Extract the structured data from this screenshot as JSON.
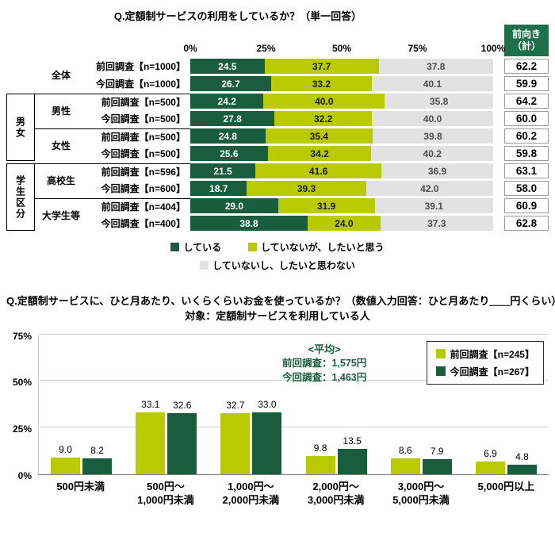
{
  "page": {
    "background": "#ffffff"
  },
  "colors": {
    "dark_green": "#1a5c3e",
    "lime_green": "#b9cb00",
    "light_gray": "#e2e2e2",
    "header_green": "#1e6f4a",
    "average_text": "#1a5c3e"
  },
  "chart_data": [
    {
      "type": "bar",
      "subtype": "horizontal-stacked",
      "title": "Q.定額制サービスの利用をしているか？（単一回答）",
      "value_column_header_line1": "前向き",
      "value_column_header_line2": "（計）",
      "axis_ticks": [
        "0%",
        "25%",
        "50%",
        "75%",
        "100%"
      ],
      "axis_range": [
        0,
        100
      ],
      "series": [
        "している",
        "していないが、したいと思う",
        "していないし、したいと思わない"
      ],
      "series_colors": [
        "#1a5c3e",
        "#b9cb00",
        "#e2e2e2"
      ],
      "series_label_colors": [
        "#ffffff",
        "#1a1a1a",
        "#4d4d4d"
      ],
      "blocks": [
        {
          "group_label": "",
          "subgroups": [
            {
              "label": "全体",
              "rows": [
                {
                  "label": "前回調査【n=1000】",
                  "values": [
                    24.5,
                    37.7,
                    37.8
                  ],
                  "positive_total": 62.2
                },
                {
                  "label": "今回調査【n=1000】",
                  "values": [
                    26.7,
                    33.2,
                    40.1
                  ],
                  "positive_total": 59.9
                }
              ]
            }
          ]
        },
        {
          "group_label": "男女",
          "subgroups": [
            {
              "label": "男性",
              "rows": [
                {
                  "label": "前回調査【n=500】",
                  "values": [
                    24.2,
                    40.0,
                    35.8
                  ],
                  "positive_total": 64.2
                },
                {
                  "label": "今回調査【n=500】",
                  "values": [
                    27.8,
                    32.2,
                    40.0
                  ],
                  "positive_total": 60.0
                }
              ]
            },
            {
              "label": "女性",
              "rows": [
                {
                  "label": "前回調査【n=500】",
                  "values": [
                    24.8,
                    35.4,
                    39.8
                  ],
                  "positive_total": 60.2
                },
                {
                  "label": "今回調査【n=500】",
                  "values": [
                    25.6,
                    34.2,
                    40.2
                  ],
                  "positive_total": 59.8
                }
              ]
            }
          ]
        },
        {
          "group_label": "学生区分",
          "subgroups": [
            {
              "label": "高校生",
              "rows": [
                {
                  "label": "前回調査【n=596】",
                  "values": [
                    21.5,
                    41.6,
                    36.9
                  ],
                  "positive_total": 63.1
                },
                {
                  "label": "今回調査【n=600】",
                  "values": [
                    18.7,
                    39.3,
                    42.0
                  ],
                  "positive_total": 58.0
                }
              ]
            },
            {
              "label": "大学生等",
              "rows": [
                {
                  "label": "前回調査【n=404】",
                  "values": [
                    29.0,
                    31.9,
                    39.1
                  ],
                  "positive_total": 60.9
                },
                {
                  "label": "今回調査【n=400】",
                  "values": [
                    38.8,
                    24.0,
                    37.3
                  ],
                  "positive_total": 62.8
                }
              ]
            }
          ]
        }
      ]
    },
    {
      "type": "bar",
      "subtype": "vertical-grouped",
      "title_line1": "Q.定額制サービスに、ひと月あたり、いくらくらいお金を使っているか？（数値入力回答：ひと月あたり＿＿円くらい）",
      "title_line2": "対象：定額制サービスを利用している人",
      "ylabel_ticks": [
        "0%",
        "25%",
        "50%",
        "75%"
      ],
      "ylim": [
        0,
        75
      ],
      "grid": true,
      "categories": [
        [
          "500円未満"
        ],
        [
          "500円〜",
          "1,000円未満"
        ],
        [
          "1,000円〜",
          "2,000円未満"
        ],
        [
          "2,000円〜",
          "3,000円未満"
        ],
        [
          "3,000円〜",
          "5,000円未満"
        ],
        [
          "5,000円以上"
        ]
      ],
      "series": [
        {
          "name": "前回調査【n=245】",
          "color": "#b9cb00",
          "values": [
            9.0,
            33.1,
            32.7,
            9.8,
            8.6,
            6.9
          ]
        },
        {
          "name": "今回調査【n=267】",
          "color": "#1a5c3e",
          "values": [
            8.2,
            32.6,
            33.0,
            13.5,
            7.9,
            4.8
          ]
        }
      ],
      "legend_position": "top-right",
      "average_note": {
        "heading": "<平均>",
        "lines": [
          "前回調査：1,575円",
          "今回調査：1,463円"
        ]
      }
    }
  ]
}
